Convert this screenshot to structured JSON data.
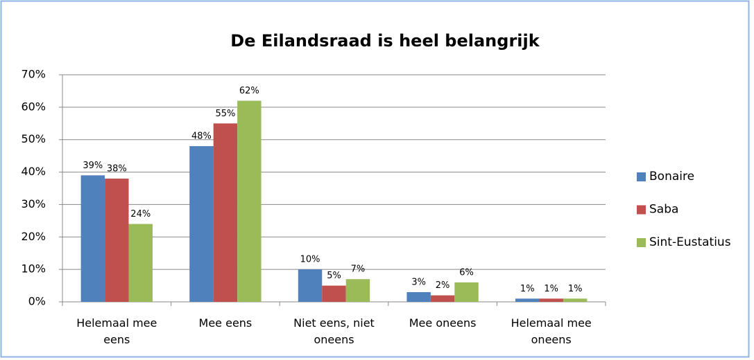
{
  "chart_data": {
    "type": "bar",
    "title": "De Eilandsraad is heel belangrijk",
    "categories": [
      "Helemaal mee eens",
      "Mee eens",
      "Niet eens, niet oneens",
      "Mee oneens",
      "Helemaal mee oneens"
    ],
    "series": [
      {
        "name": "Bonaire",
        "color": "#4f81bd",
        "values": [
          39,
          48,
          10,
          3,
          1
        ],
        "value_labels": [
          "39%",
          "48%",
          "10%",
          "3%",
          "1%"
        ]
      },
      {
        "name": "Saba",
        "color": "#c0504d",
        "values": [
          38,
          55,
          5,
          2,
          1
        ],
        "value_labels": [
          "38%",
          "55%",
          "5%",
          "2%",
          "1%"
        ]
      },
      {
        "name": "Sint-Eustatius",
        "color": "#9bbb59",
        "values": [
          24,
          62,
          7,
          6,
          1
        ],
        "value_labels": [
          "24%",
          "62%",
          "7%",
          "6%",
          "1%"
        ]
      }
    ],
    "ylim": [
      0,
      70
    ],
    "yticks": [
      {
        "value": 0,
        "label": "0%"
      },
      {
        "value": 10,
        "label": "10%"
      },
      {
        "value": 20,
        "label": "20%"
      },
      {
        "value": 30,
        "label": "30%"
      },
      {
        "value": 40,
        "label": "40%"
      },
      {
        "value": 50,
        "label": "50%"
      },
      {
        "value": 60,
        "label": "60%"
      },
      {
        "value": 70,
        "label": "70%"
      }
    ],
    "grid": true,
    "legend": "right"
  }
}
